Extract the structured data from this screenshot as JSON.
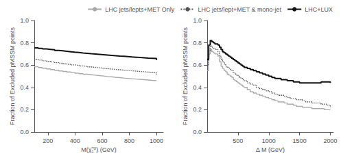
{
  "chart_data": [
    {
      "type": "step",
      "xlabel": "M(χ̃₁⁰) (GeV)",
      "ylabel": "Fraction of Excluded pMSSM points",
      "xlim": [
        100,
        1050
      ],
      "ylim": [
        0,
        1.0
      ],
      "xticks": [
        200,
        400,
        600,
        800,
        1000
      ],
      "yticks": [
        {
          "value": 0,
          "label": "0.0"
        },
        0.2,
        0.4,
        0.6,
        0.8,
        {
          "value": 1.0,
          "label": "1.0"
        }
      ],
      "grid": false,
      "legend": "upper right",
      "x": [
        100,
        130,
        160,
        190,
        220,
        250,
        280,
        310,
        340,
        370,
        400,
        430,
        460,
        490,
        520,
        550,
        580,
        610,
        640,
        670,
        700,
        730,
        760,
        790,
        820,
        850,
        880,
        910,
        940,
        970,
        1000
      ],
      "series": [
        {
          "name": "LHC jets/lepts+MET Only",
          "color": "#aaaaaa",
          "line_style": "solid",
          "values": [
            0.585,
            0.578,
            0.572,
            0.566,
            0.56,
            0.554,
            0.548,
            0.543,
            0.538,
            0.533,
            0.528,
            0.523,
            0.518,
            0.514,
            0.51,
            0.506,
            0.502,
            0.498,
            0.495,
            0.491,
            0.488,
            0.484,
            0.481,
            0.478,
            0.475,
            0.472,
            0.469,
            0.466,
            0.463,
            0.461,
            0.46
          ]
        },
        {
          "name": "LHC jets/lept+MET & mono-jet",
          "color": "#555555",
          "line_style": "dotted",
          "values": [
            0.65,
            0.645,
            0.639,
            0.633,
            0.628,
            0.622,
            0.617,
            0.612,
            0.607,
            0.602,
            0.598,
            0.593,
            0.589,
            0.584,
            0.58,
            0.576,
            0.572,
            0.568,
            0.565,
            0.561,
            0.558,
            0.555,
            0.552,
            0.549,
            0.546,
            0.543,
            0.54,
            0.537,
            0.535,
            0.532,
            0.51
          ]
        },
        {
          "name": "LHC+LUX",
          "color": "#111111",
          "line_style": "solid",
          "values": [
            0.755,
            0.75,
            0.745,
            0.741,
            0.737,
            0.732,
            0.728,
            0.724,
            0.72,
            0.716,
            0.713,
            0.709,
            0.706,
            0.702,
            0.699,
            0.696,
            0.693,
            0.69,
            0.687,
            0.684,
            0.681,
            0.679,
            0.676,
            0.673,
            0.671,
            0.668,
            0.666,
            0.663,
            0.661,
            0.659,
            0.645
          ]
        }
      ]
    },
    {
      "type": "step",
      "xlabel": "Δ M (GeV)",
      "ylabel": "Fraction of Excluded pMSSM points",
      "xlim": [
        0,
        2050
      ],
      "ylim": [
        0,
        1.0
      ],
      "xticks": [
        500,
        1000,
        1500,
        2000
      ],
      "yticks": [
        {
          "value": 0,
          "label": "0.0"
        },
        0.2,
        0.4,
        0.6,
        0.8,
        {
          "value": 1.0,
          "label": "1.0"
        }
      ],
      "grid": false,
      "x": [
        0,
        25,
        50,
        75,
        100,
        125,
        150,
        175,
        200,
        225,
        250,
        275,
        300,
        325,
        350,
        375,
        400,
        425,
        450,
        475,
        500,
        525,
        550,
        575,
        600,
        650,
        700,
        750,
        800,
        850,
        900,
        950,
        1000,
        1050,
        1100,
        1150,
        1200,
        1250,
        1300,
        1350,
        1400,
        1450,
        1500,
        1550,
        1600,
        1650,
        1700,
        1750,
        1800,
        1850,
        1900,
        1950,
        2000
      ],
      "series": [
        {
          "color": "#aaaaaa",
          "line_style": "solid",
          "values": [
            0.55,
            0.7,
            0.74,
            0.72,
            0.71,
            0.7,
            0.7,
            0.68,
            0.63,
            0.59,
            0.57,
            0.55,
            0.54,
            0.52,
            0.51,
            0.5,
            0.49,
            0.47,
            0.46,
            0.45,
            0.44,
            0.43,
            0.42,
            0.41,
            0.4,
            0.38,
            0.36,
            0.35,
            0.34,
            0.33,
            0.32,
            0.31,
            0.3,
            0.29,
            0.28,
            0.27,
            0.27,
            0.26,
            0.25,
            0.25,
            0.24,
            0.23,
            0.23,
            0.22,
            0.22,
            0.22,
            0.21,
            0.21,
            0.21,
            0.21,
            0.2,
            0.2,
            0.2
          ]
        },
        {
          "color": "#555555",
          "line_style": "dotted",
          "values": [
            0.6,
            0.73,
            0.77,
            0.76,
            0.75,
            0.74,
            0.74,
            0.72,
            0.68,
            0.65,
            0.63,
            0.61,
            0.59,
            0.58,
            0.57,
            0.56,
            0.55,
            0.53,
            0.52,
            0.51,
            0.5,
            0.49,
            0.48,
            0.47,
            0.46,
            0.44,
            0.43,
            0.42,
            0.4,
            0.39,
            0.38,
            0.37,
            0.36,
            0.35,
            0.34,
            0.33,
            0.33,
            0.32,
            0.31,
            0.3,
            0.3,
            0.29,
            0.29,
            0.28,
            0.27,
            0.27,
            0.26,
            0.26,
            0.26,
            0.25,
            0.25,
            0.24,
            0.22
          ]
        },
        {
          "color": "#111111",
          "line_style": "solid",
          "values": [
            0.65,
            0.78,
            0.82,
            0.81,
            0.8,
            0.79,
            0.79,
            0.78,
            0.76,
            0.74,
            0.72,
            0.71,
            0.7,
            0.69,
            0.68,
            0.67,
            0.66,
            0.65,
            0.64,
            0.63,
            0.62,
            0.61,
            0.6,
            0.59,
            0.58,
            0.57,
            0.56,
            0.55,
            0.54,
            0.53,
            0.52,
            0.51,
            0.5,
            0.49,
            0.48,
            0.48,
            0.47,
            0.47,
            0.46,
            0.46,
            0.45,
            0.45,
            0.44,
            0.44,
            0.44,
            0.44,
            0.44,
            0.44,
            0.44,
            0.45,
            0.45,
            0.45,
            0.44
          ]
        }
      ]
    }
  ]
}
